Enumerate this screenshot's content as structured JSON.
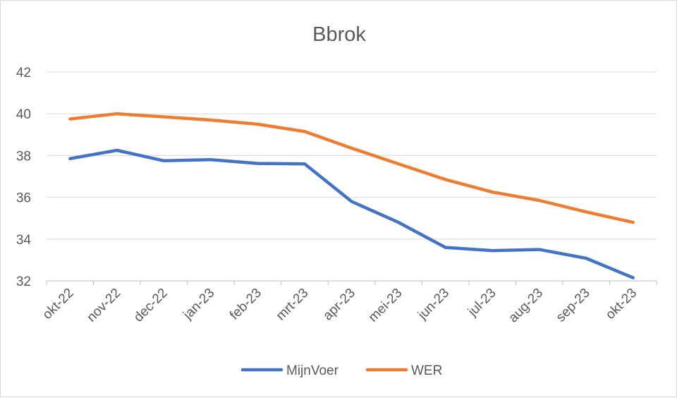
{
  "chart_data": {
    "type": "line",
    "title": "Bbrok",
    "xlabel": "",
    "ylabel": "",
    "categories": [
      "okt-22",
      "nov-22",
      "dec-22",
      "jan-23",
      "feb-23",
      "mrt-23",
      "apr-23",
      "mei-23",
      "jun-23",
      "jul-23",
      "aug-23",
      "sep-23",
      "okt-23"
    ],
    "yticks": [
      "32",
      "34",
      "36",
      "38",
      "40",
      "42"
    ],
    "ylim": [
      32,
      42
    ],
    "grid": true,
    "legend_position": "bottom",
    "series": [
      {
        "name": "MijnVoer",
        "color": "#4472c4",
        "values": [
          37.85,
          38.25,
          37.75,
          37.8,
          37.62,
          37.6,
          35.8,
          34.8,
          33.6,
          33.45,
          33.5,
          33.08,
          32.15
        ]
      },
      {
        "name": "WER",
        "color": "#ed7d31",
        "values": [
          39.75,
          40.0,
          39.85,
          39.7,
          39.5,
          39.15,
          38.35,
          37.6,
          36.85,
          36.25,
          35.85,
          35.3,
          34.8
        ]
      }
    ]
  }
}
